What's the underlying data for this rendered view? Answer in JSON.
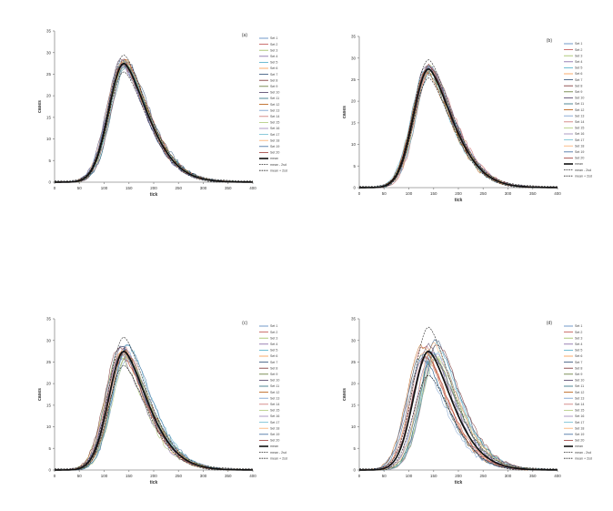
{
  "chart_data": [
    {
      "type": "line",
      "panel_label": "(a)",
      "xlabel": "tick",
      "ylabel": "cases",
      "xlim": [
        0,
        400
      ],
      "ylim": [
        0,
        35
      ],
      "xticks": [
        0,
        50,
        100,
        150,
        200,
        250,
        300,
        350,
        400
      ],
      "yticks": [
        0,
        5,
        10,
        15,
        20,
        25,
        30,
        35
      ],
      "grid": false,
      "legend_position": "right",
      "peak_tick": 140,
      "peak_value": 27.5,
      "series_spread": 1.0,
      "legend": [
        "Set 1",
        "Set 2",
        "Set 3",
        "Set 4",
        "Set 5",
        "Set 6",
        "Set 7",
        "Set 8",
        "Set 9",
        "Set 10",
        "Set 11",
        "Set 12",
        "Set 13",
        "Set 14",
        "Set 15",
        "Set 16",
        "Set 17",
        "Set 18",
        "Set 19",
        "Set 20",
        "mean",
        "mean - 2sd",
        "mean + 2sd"
      ]
    },
    {
      "type": "line",
      "panel_label": "(b)",
      "xlabel": "tick",
      "ylabel": "cases",
      "xlim": [
        0,
        400
      ],
      "ylim": [
        0,
        35
      ],
      "xticks": [
        0,
        50,
        100,
        150,
        200,
        250,
        300,
        350,
        400
      ],
      "yticks": [
        0,
        5,
        10,
        15,
        20,
        25,
        30,
        35
      ],
      "grid": false,
      "legend_position": "right",
      "peak_tick": 140,
      "peak_value": 27.5,
      "series_spread": 1.1,
      "legend": [
        "Set 1",
        "Set 2",
        "Set 3",
        "Set 4",
        "Set 5",
        "Set 6",
        "Set 7",
        "Set 8",
        "Set 9",
        "Set 10",
        "Set 11",
        "Set 12",
        "Set 13",
        "Set 14",
        "Set 15",
        "Set 16",
        "Set 17",
        "Set 18",
        "Set 19",
        "Set 20",
        "mean",
        "mean - 2sd",
        "mean + 2sd"
      ]
    },
    {
      "type": "line",
      "panel_label": "(c)",
      "xlabel": "tick",
      "ylabel": "cases",
      "xlim": [
        0,
        400
      ],
      "ylim": [
        0,
        35
      ],
      "xticks": [
        0,
        50,
        100,
        150,
        200,
        250,
        300,
        350,
        400
      ],
      "yticks": [
        0,
        5,
        10,
        15,
        20,
        25,
        30,
        35
      ],
      "grid": false,
      "legend_position": "right",
      "peak_tick": 140,
      "peak_value": 27.5,
      "series_spread": 1.8,
      "legend": [
        "Set 1",
        "Set 2",
        "Set 3",
        "Set 4",
        "Set 5",
        "Set 6",
        "Set 7",
        "Set 8",
        "Set 9",
        "Set 10",
        "Set 11",
        "Set 12",
        "Set 13",
        "Set 14",
        "Set 15",
        "Set 16",
        "Set 17",
        "Set 18",
        "Set 19",
        "Set 20",
        "mean",
        "mean - 2sd",
        "mean + 2sd"
      ]
    },
    {
      "type": "line",
      "panel_label": "(d)",
      "xlabel": "tick",
      "ylabel": "cases",
      "xlim": [
        0,
        400
      ],
      "ylim": [
        0,
        35
      ],
      "xticks": [
        0,
        50,
        100,
        150,
        200,
        250,
        300,
        350,
        400
      ],
      "yticks": [
        0,
        5,
        10,
        15,
        20,
        25,
        30,
        35
      ],
      "grid": false,
      "legend_position": "right",
      "peak_tick": 140,
      "peak_value": 27.5,
      "series_spread": 3.2,
      "legend": [
        "Set 1",
        "Set 2",
        "Set 3",
        "Set 4",
        "Set 5",
        "Set 6",
        "Set 7",
        "Set 8",
        "Set 9",
        "Set 10",
        "Set 11",
        "Set 12",
        "Set 13",
        "Set 14",
        "Set 15",
        "Set 16",
        "Set 17",
        "Set 18",
        "Set 19",
        "Set 20",
        "mean",
        "mean - 2sd",
        "mean + 2sd"
      ]
    }
  ],
  "colors": {
    "series": [
      "#4f81bd",
      "#c0504d",
      "#9bbb59",
      "#8064a2",
      "#4bacc6",
      "#f79646",
      "#2c4d75",
      "#772c2a",
      "#5f7530",
      "#4d3b62",
      "#276a7c",
      "#b65708",
      "#729aca",
      "#cd7371",
      "#afc97a",
      "#9983b5",
      "#6fbdd1",
      "#f9ab6b",
      "#3a679c",
      "#9d3a38"
    ],
    "mean": "#111111",
    "sd": "#222222",
    "axis": "#8c8c8c"
  }
}
